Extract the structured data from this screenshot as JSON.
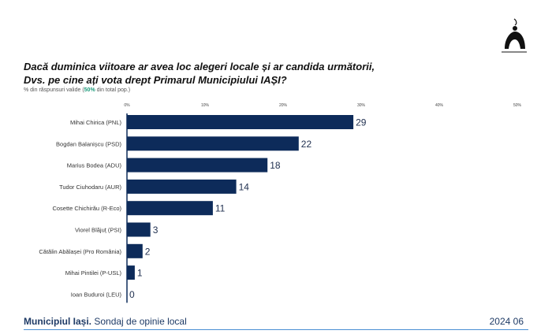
{
  "header": {
    "title_line1": "Dacă duminica viitoare ar avea loc alegeri locale și ar candida următorii,",
    "title_line2": "Dvs. pe cine ați vota drept Primarul Municipiului IAȘI?",
    "subtitle_pre": "% din răspunsuri valide (",
    "subtitle_accent": "50%",
    "subtitle_post": " din total pop.)"
  },
  "colors": {
    "bar": "#0d2b5a",
    "accent": "#1a9a7a",
    "footer": "#1f3b66",
    "rule": "#4a8fd4"
  },
  "chart_data": {
    "type": "bar",
    "orientation": "horizontal",
    "categories": [
      "Mihai Chirica (PNL)",
      "Bogdan Balanișcu (PSD)",
      "Marius Bodea (ADU)",
      "Tudor Ciuhodaru (AUR)",
      "Cosette Chichirău (R-Eco)",
      "Viorel Blăjuț (PSI)",
      "Cătălin Abălașei (Pro România)",
      "Mihai Pintilei (P-USL)",
      "Ioan Buduroi (LEU)"
    ],
    "values": [
      29,
      22,
      18,
      14,
      11,
      3,
      2,
      1,
      0
    ],
    "xlim": [
      0,
      50
    ],
    "xticks": [
      0,
      10,
      20,
      30,
      40,
      50
    ],
    "xtick_labels": [
      "0%",
      "10%",
      "20%",
      "30%",
      "40%",
      "50%"
    ],
    "grid": false
  },
  "footer": {
    "left_bold": "Municipiul Iași.",
    "left_rest": " Sondaj de opinie local",
    "right": "2024 06"
  }
}
